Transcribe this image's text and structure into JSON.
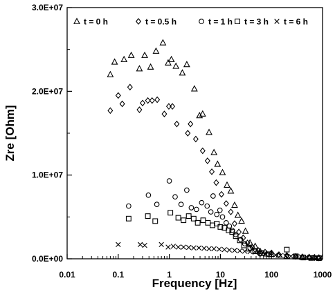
{
  "chart_data": {
    "type": "scatter",
    "title": "",
    "xlabel": "Frequency [Hz]",
    "ylabel": "Zre [Ohm]",
    "xscale": "log",
    "xlim": [
      0.01,
      1000
    ],
    "ylim": [
      0,
      30000000
    ],
    "xticks": [
      {
        "value": 0.01,
        "label": "0.01"
      },
      {
        "value": 0.1,
        "label": "0.1"
      },
      {
        "value": 1,
        "label": "1"
      },
      {
        "value": 10,
        "label": "10"
      },
      {
        "value": 100,
        "label": "100"
      },
      {
        "value": 1000,
        "label": "1000"
      }
    ],
    "yticks": [
      {
        "value": 0,
        "label": "0.0E+00"
      },
      {
        "value": 10000000,
        "label": "1.0E+07"
      },
      {
        "value": 20000000,
        "label": "2.0E+07"
      },
      {
        "value": 30000000,
        "label": "3.0E+07"
      }
    ],
    "grid": false,
    "legend_position": "top",
    "series": [
      {
        "name": "t = 0 h",
        "marker": "triangle",
        "points": [
          [
            0.07,
            22000000
          ],
          [
            0.085,
            23500000
          ],
          [
            0.13,
            23800000
          ],
          [
            0.18,
            24300000
          ],
          [
            0.26,
            22700000
          ],
          [
            0.33,
            24300000
          ],
          [
            0.43,
            22900000
          ],
          [
            0.55,
            24800000
          ],
          [
            0.75,
            25800000
          ],
          [
            0.95,
            23400000
          ],
          [
            1.1,
            23800000
          ],
          [
            1.35,
            23000000
          ],
          [
            1.8,
            22200000
          ],
          [
            2.2,
            23200000
          ],
          [
            3.1,
            20300000
          ],
          [
            3.9,
            17100000
          ],
          [
            4.5,
            17300000
          ],
          [
            6.0,
            15100000
          ],
          [
            7.5,
            12700000
          ],
          [
            8.8,
            11300000
          ],
          [
            11.0,
            10300000
          ],
          [
            13.5,
            8800000
          ],
          [
            16.0,
            8100000
          ],
          [
            19.0,
            6400000
          ],
          [
            22.0,
            5200000
          ],
          [
            26.0,
            4500000
          ],
          [
            31.0,
            3300000
          ],
          [
            38.0,
            1900000
          ],
          [
            48.0,
            1500000
          ],
          [
            60.0,
            900000
          ],
          [
            80.0,
            600000
          ],
          [
            100.0,
            550000
          ],
          [
            140.0,
            450000
          ],
          [
            200.0,
            300000
          ],
          [
            300.0,
            250000
          ],
          [
            400.0,
            200000
          ],
          [
            550.0,
            180000
          ],
          [
            700.0,
            150000
          ],
          [
            850.0,
            120000
          ]
        ]
      },
      {
        "name": "t = 0.5 h",
        "marker": "diamond",
        "points": [
          [
            0.07,
            17700000
          ],
          [
            0.1,
            19500000
          ],
          [
            0.12,
            18500000
          ],
          [
            0.17,
            20500000
          ],
          [
            0.26,
            17800000
          ],
          [
            0.3,
            18600000
          ],
          [
            0.38,
            18900000
          ],
          [
            0.46,
            18900000
          ],
          [
            0.58,
            19000000
          ],
          [
            0.8,
            17300000
          ],
          [
            0.98,
            18200000
          ],
          [
            1.15,
            18200000
          ],
          [
            1.4,
            16100000
          ],
          [
            2.3,
            15000000
          ],
          [
            2.6,
            16100000
          ],
          [
            3.3,
            14300000
          ],
          [
            4.5,
            12900000
          ],
          [
            5.6,
            11700000
          ],
          [
            6.8,
            10400000
          ],
          [
            8.3,
            9100000
          ],
          [
            10.5,
            7700000
          ],
          [
            13.0,
            6600000
          ],
          [
            16.0,
            5600000
          ],
          [
            19.0,
            4200000
          ],
          [
            23.0,
            3200000
          ],
          [
            28.0,
            2500000
          ],
          [
            34.0,
            1900000
          ],
          [
            42.0,
            1400000
          ],
          [
            55.0,
            1000000
          ],
          [
            75.0,
            800000
          ],
          [
            100.0,
            700000
          ],
          [
            140.0,
            500000
          ],
          [
            200.0,
            400000
          ],
          [
            300.0,
            280000
          ],
          [
            400.0,
            220000
          ],
          [
            550.0,
            180000
          ],
          [
            700.0,
            140000
          ],
          [
            850.0,
            100000
          ]
        ]
      },
      {
        "name": "t = 1 h",
        "marker": "circle",
        "points": [
          [
            0.16,
            6300000
          ],
          [
            0.39,
            7600000
          ],
          [
            0.57,
            6500000
          ],
          [
            1.0,
            9300000
          ],
          [
            1.3,
            7400000
          ],
          [
            1.7,
            6500000
          ],
          [
            2.2,
            8200000
          ],
          [
            2.7,
            6100000
          ],
          [
            3.4,
            5900000
          ],
          [
            4.3,
            6700000
          ],
          [
            5.5,
            6300000
          ],
          [
            6.5,
            5600000
          ],
          [
            7.2,
            7500000
          ],
          [
            8.5,
            5300000
          ],
          [
            9.8,
            5800000
          ],
          [
            11.0,
            5000000
          ],
          [
            13.0,
            4300000
          ],
          [
            15.0,
            3900000
          ],
          [
            17.0,
            3400000
          ],
          [
            20.0,
            2900000
          ],
          [
            25.0,
            2300000
          ],
          [
            30.0,
            1800000
          ],
          [
            38.0,
            1300000
          ],
          [
            48.0,
            900000
          ],
          [
            60.0,
            600000
          ]
        ]
      },
      {
        "name": "t = 3 h",
        "marker": "square",
        "points": [
          [
            0.16,
            4800000
          ],
          [
            0.38,
            5100000
          ],
          [
            0.53,
            4500000
          ],
          [
            1.05,
            5500000
          ],
          [
            1.5,
            4900000
          ],
          [
            1.9,
            4600000
          ],
          [
            2.4,
            5100000
          ],
          [
            3.0,
            4800000
          ],
          [
            3.6,
            4300000
          ],
          [
            4.6,
            4600000
          ],
          [
            5.7,
            4300000
          ],
          [
            7.0,
            4000000
          ],
          [
            8.5,
            4200000
          ],
          [
            10.0,
            3800000
          ],
          [
            12.0,
            3700000
          ],
          [
            14.5,
            3400000
          ],
          [
            17.0,
            3200000
          ],
          [
            20.0,
            2700000
          ],
          [
            24.0,
            2200000
          ],
          [
            29.0,
            1600000
          ],
          [
            36.0,
            1200000
          ],
          [
            48.0,
            900000
          ],
          [
            65.0,
            700000
          ],
          [
            90.0,
            550000
          ],
          [
            200.0,
            1100000
          ],
          [
            300.0,
            300000
          ],
          [
            420.0,
            150000
          ],
          [
            600.0,
            100000
          ],
          [
            850.0,
            80000
          ]
        ]
      },
      {
        "name": "t = 6 h",
        "marker": "cross",
        "points": [
          [
            0.1,
            1700000
          ],
          [
            0.27,
            1700000
          ],
          [
            0.33,
            1600000
          ],
          [
            0.7,
            1700000
          ],
          [
            0.95,
            1400000
          ],
          [
            1.2,
            1500000
          ],
          [
            1.5,
            1400000
          ],
          [
            1.9,
            1400000
          ],
          [
            2.4,
            1350000
          ],
          [
            3.0,
            1300000
          ],
          [
            3.8,
            1300000
          ],
          [
            4.8,
            1250000
          ],
          [
            6.0,
            1200000
          ],
          [
            7.5,
            1200000
          ],
          [
            9.5,
            1150000
          ],
          [
            12.0,
            1100000
          ],
          [
            15.0,
            1050000
          ],
          [
            19.0,
            1000000
          ],
          [
            24.0,
            950000
          ],
          [
            30.0,
            900000
          ],
          [
            38.0,
            850000
          ],
          [
            48.0,
            800000
          ],
          [
            60.0,
            700000
          ],
          [
            75.0,
            600000
          ],
          [
            95.0,
            500000
          ],
          [
            120.0,
            450000
          ],
          [
            150.0,
            400000
          ],
          [
            190.0,
            350000
          ],
          [
            240.0,
            300000
          ],
          [
            300.0,
            280000
          ],
          [
            380.0,
            250000
          ],
          [
            480.0,
            220000
          ],
          [
            600.0,
            180000
          ],
          [
            750.0,
            150000
          ],
          [
            900.0,
            120000
          ]
        ]
      }
    ]
  }
}
